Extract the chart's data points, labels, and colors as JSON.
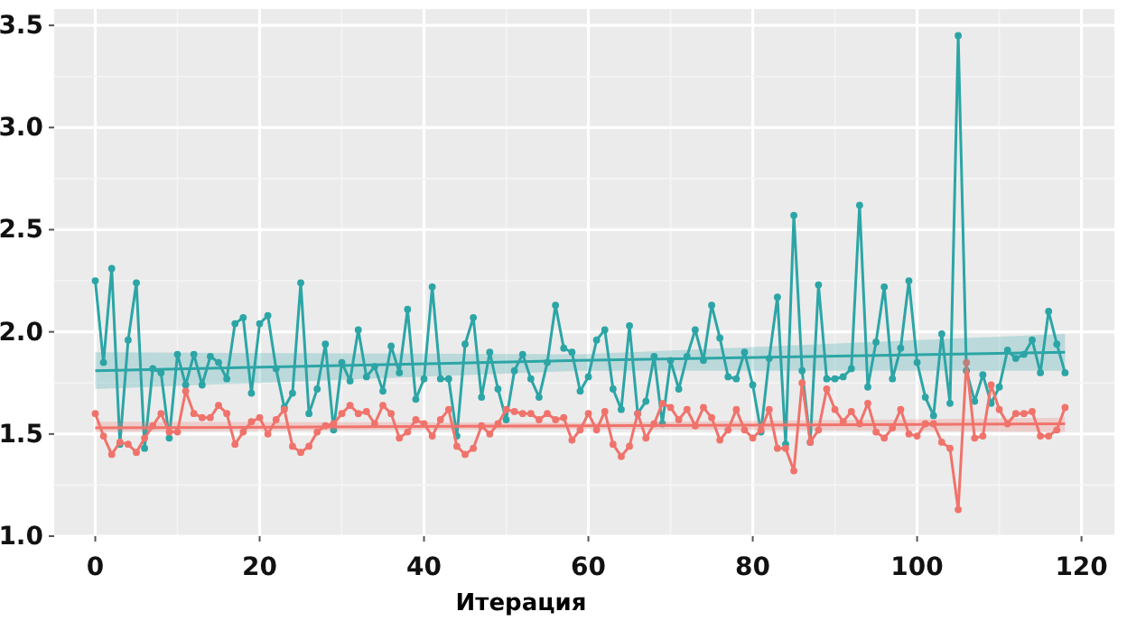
{
  "chart_data": {
    "type": "line",
    "xlabel": "Итерация",
    "x": [
      0,
      1,
      2,
      3,
      4,
      5,
      6,
      7,
      8,
      9,
      10,
      11,
      12,
      13,
      14,
      15,
      16,
      17,
      18,
      19,
      20,
      21,
      22,
      23,
      24,
      25,
      26,
      27,
      28,
      29,
      30,
      31,
      32,
      33,
      34,
      35,
      36,
      37,
      38,
      39,
      40,
      41,
      42,
      43,
      44,
      45,
      46,
      47,
      48,
      49,
      50,
      51,
      52,
      53,
      54,
      55,
      56,
      57,
      58,
      59,
      60,
      61,
      62,
      63,
      64,
      65,
      66,
      67,
      68,
      69,
      70,
      71,
      72,
      73,
      74,
      75,
      76,
      77,
      78,
      79,
      80,
      81,
      82,
      83,
      84,
      85,
      86,
      87,
      88,
      89,
      90,
      91,
      92,
      93,
      94,
      95,
      96,
      97,
      98,
      99,
      100,
      101,
      102,
      103,
      104,
      105,
      106,
      107,
      108,
      109,
      110,
      111,
      112,
      113,
      114,
      115,
      116,
      117,
      118
    ],
    "series": [
      {
        "color": "#2ca5a6",
        "values": [
          2.25,
          1.85,
          2.31,
          1.45,
          1.96,
          2.24,
          1.43,
          1.82,
          1.8,
          1.48,
          1.89,
          1.74,
          1.89,
          1.74,
          1.88,
          1.85,
          1.77,
          2.04,
          2.07,
          1.7,
          2.04,
          2.08,
          1.82,
          1.63,
          1.7,
          2.24,
          1.6,
          1.72,
          1.94,
          1.52,
          1.85,
          1.76,
          2.01,
          1.78,
          1.83,
          1.71,
          1.93,
          1.8,
          2.11,
          1.67,
          1.77,
          2.22,
          1.77,
          1.77,
          1.49,
          1.94,
          2.07,
          1.68,
          1.9,
          1.72,
          1.57,
          1.81,
          1.89,
          1.77,
          1.68,
          1.85,
          2.13,
          1.92,
          1.9,
          1.71,
          1.78,
          1.96,
          2.01,
          1.72,
          1.62,
          2.03,
          1.6,
          1.66,
          1.88,
          1.55,
          1.86,
          1.72,
          1.88,
          2.01,
          1.86,
          2.13,
          1.97,
          1.78,
          1.77,
          1.9,
          1.74,
          1.51,
          1.87,
          2.17,
          1.45,
          2.57,
          1.81,
          1.46,
          2.23,
          1.77,
          1.77,
          1.78,
          1.82,
          2.62,
          1.73,
          1.95,
          2.22,
          1.77,
          1.92,
          2.25,
          1.85,
          1.68,
          1.59,
          1.99,
          1.65,
          3.45,
          1.81,
          1.66,
          1.79,
          1.65,
          1.73,
          1.91,
          1.87,
          1.89,
          1.96,
          1.8,
          2.1,
          1.94,
          1.8
        ]
      },
      {
        "color": "#f0736b",
        "values": [
          1.6,
          1.49,
          1.4,
          1.46,
          1.45,
          1.41,
          1.48,
          1.54,
          1.6,
          1.51,
          1.51,
          1.71,
          1.6,
          1.58,
          1.58,
          1.64,
          1.6,
          1.45,
          1.51,
          1.56,
          1.58,
          1.5,
          1.57,
          1.62,
          1.44,
          1.41,
          1.44,
          1.51,
          1.54,
          1.55,
          1.6,
          1.64,
          1.6,
          1.61,
          1.55,
          1.64,
          1.6,
          1.48,
          1.51,
          1.57,
          1.55,
          1.49,
          1.57,
          1.62,
          1.44,
          1.4,
          1.43,
          1.54,
          1.5,
          1.55,
          1.62,
          1.61,
          1.6,
          1.6,
          1.57,
          1.6,
          1.57,
          1.58,
          1.47,
          1.52,
          1.6,
          1.52,
          1.61,
          1.45,
          1.39,
          1.44,
          1.6,
          1.48,
          1.55,
          1.65,
          1.63,
          1.57,
          1.62,
          1.54,
          1.63,
          1.58,
          1.47,
          1.52,
          1.62,
          1.52,
          1.48,
          1.52,
          1.62,
          1.43,
          1.43,
          1.32,
          1.75,
          1.46,
          1.52,
          1.72,
          1.62,
          1.56,
          1.61,
          1.55,
          1.65,
          1.51,
          1.48,
          1.53,
          1.62,
          1.5,
          1.49,
          1.55,
          1.55,
          1.46,
          1.43,
          1.13,
          1.85,
          1.48,
          1.49,
          1.74,
          1.62,
          1.55,
          1.6,
          1.6,
          1.61,
          1.49,
          1.49,
          1.52,
          1.63
        ]
      },
      {
        "type": "line",
        "marker": "none",
        "color": "#2ca5a6",
        "x": [
          0,
          59,
          118
        ],
        "values": [
          1.81,
          1.86,
          1.9
        ],
        "lower": [
          1.72,
          1.81,
          1.81
        ],
        "upper": [
          1.9,
          1.89,
          1.99
        ]
      },
      {
        "type": "line",
        "marker": "none",
        "color": "#f0736b",
        "x": [
          0,
          59,
          118
        ],
        "values": [
          1.53,
          1.54,
          1.55
        ],
        "lower": [
          1.51,
          1.525,
          1.51
        ],
        "upper": [
          1.56,
          1.555,
          1.58
        ]
      }
    ],
    "marker": "circle",
    "grid": true,
    "xlim": [
      -5,
      124
    ],
    "xticks": [
      0,
      20,
      40,
      60,
      80,
      100,
      120
    ],
    "ylim": [
      1.0,
      3.58
    ],
    "yticks": [
      {
        "value": 1.0,
        "label": "1.0"
      },
      1.5,
      {
        "value": 2.0,
        "label": "2.0"
      },
      2.5,
      {
        "value": 3.0,
        "label": "3.0"
      },
      3.5
    ]
  }
}
